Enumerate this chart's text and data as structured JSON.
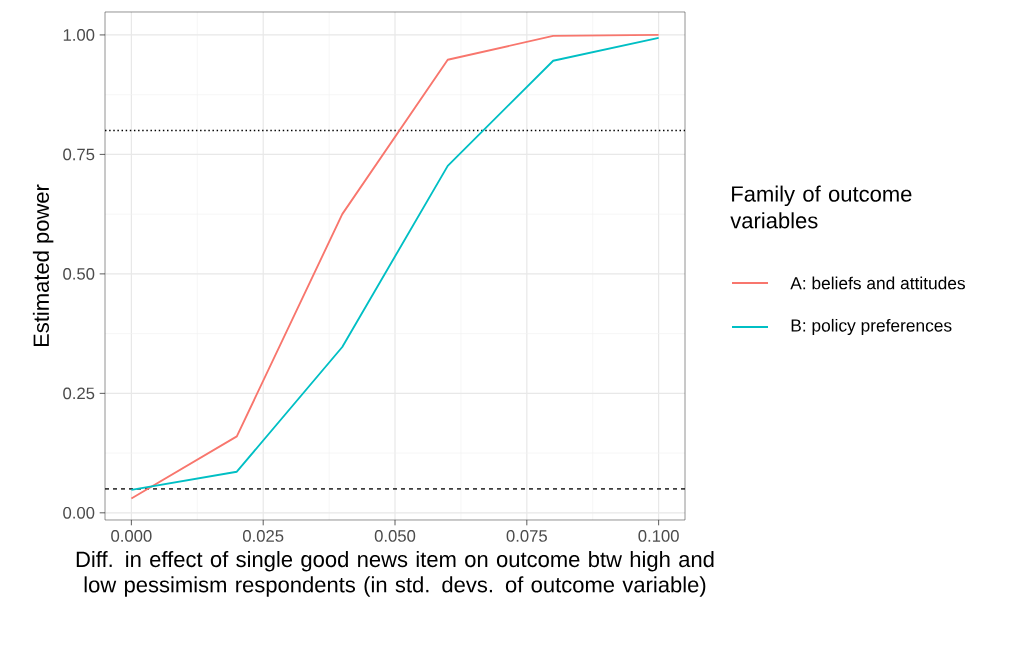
{
  "chart_data": {
    "type": "line",
    "xlabel": "Diff. in effect of single good news item on outcome btw high and low pessimism respondents (in std. devs. of outcome variable)",
    "ylabel": "Estimated power",
    "legend_title": "Family of outcome variables",
    "x": [
      0,
      0.02,
      0.04,
      0.06,
      0.08,
      0.1
    ],
    "series": [
      {
        "name": "A: beliefs and attitudes",
        "color": "#f8766d",
        "values": [
          0.03,
          0.16,
          0.625,
          0.948,
          0.998,
          1.0
        ]
      },
      {
        "name": "B: policy preferences",
        "color": "#00bfc4",
        "values": [
          0.048,
          0.086,
          0.347,
          0.726,
          0.946,
          0.994
        ]
      }
    ],
    "xlim": [
      -0.005,
      0.105
    ],
    "ylim": [
      -0.015,
      1.048
    ],
    "xticks": [
      {
        "value": 0,
        "label": "0.000"
      },
      {
        "value": 0.025,
        "label": "0.025"
      },
      {
        "value": 0.05,
        "label": "0.050"
      },
      {
        "value": 0.075,
        "label": "0.075"
      },
      {
        "value": 0.1,
        "label": "0.100"
      }
    ],
    "yticks": [
      {
        "value": 0,
        "label": "0.00"
      },
      {
        "value": 0.25,
        "label": "0.25"
      },
      {
        "value": 0.5,
        "label": "0.50"
      },
      {
        "value": 0.75,
        "label": "0.75"
      },
      {
        "value": 1,
        "label": "1.00"
      }
    ],
    "ref_lines": [
      {
        "axis": "y",
        "value": 0.8,
        "line_style": "dotted",
        "color": "#000000"
      },
      {
        "axis": "y",
        "value": 0.05,
        "line_style": "dashed",
        "color": "#000000"
      }
    ],
    "grid": true,
    "legend": "right",
    "marker": "none",
    "line_style": "solid"
  }
}
